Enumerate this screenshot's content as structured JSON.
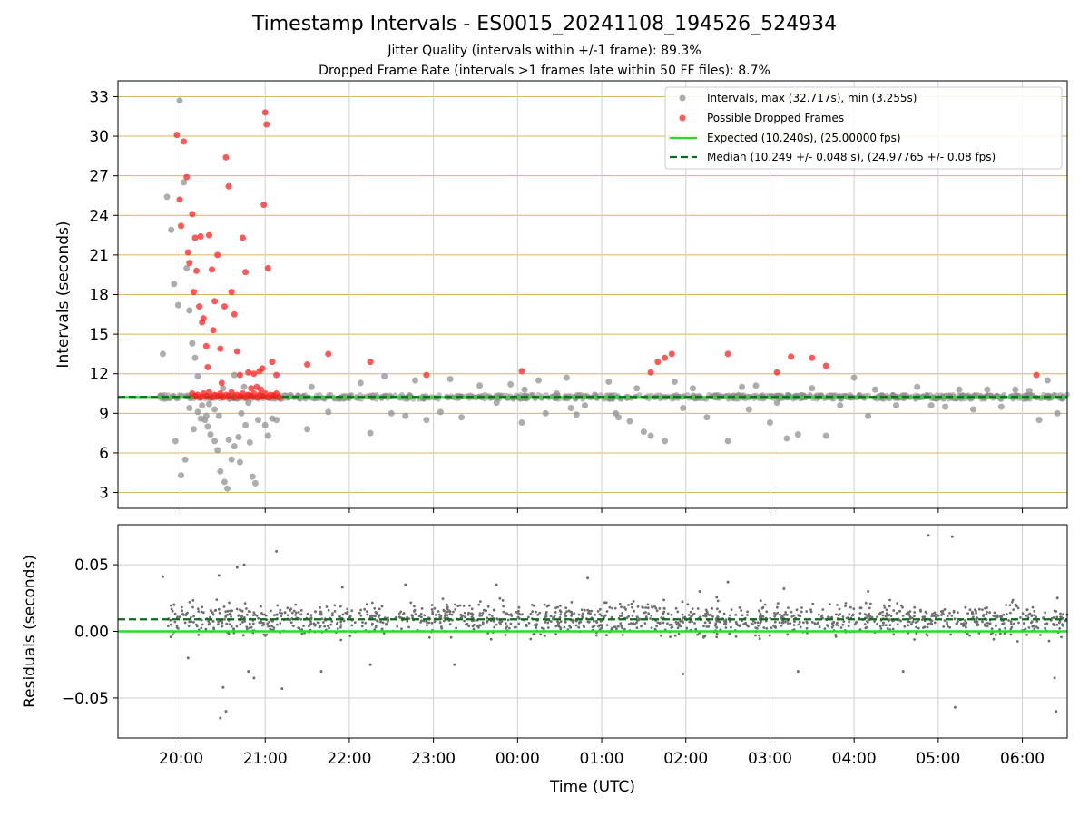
{
  "chart_data": [
    {
      "type": "scatter",
      "title": "Timestamp Intervals - ES0015_20241108_194526_524934",
      "subtitle": [
        "Jitter Quality (intervals within +/-1 frame): 89.3%",
        "Dropped Frame Rate (intervals >1 frames late within 50 FF files): 8.7%"
      ],
      "ylabel": "Intervals (seconds)",
      "xlim": [
        "19:15",
        "06:32"
      ],
      "ylim": [
        1.8,
        34.2
      ],
      "yticks": [
        3,
        6,
        9,
        12,
        15,
        18,
        21,
        24,
        27,
        30,
        33
      ],
      "grid": true,
      "legend_placement": "top-right",
      "legend": [
        "Intervals, max (32.717s), min (3.255s)",
        "Possible Dropped Frames",
        "Expected (10.240s), (25.00000 fps)",
        "Median (10.249 +/- 0.048 s), (24.97765 +/- 0.08 fps)"
      ],
      "expected_interval": 10.24,
      "median_interval": 10.249,
      "series": [
        {
          "name": "Intervals, max (32.717s), min (3.255s)",
          "color": "#8a8a8a",
          "x": [
            "19:47",
            "19:50",
            "19:53",
            "19:55",
            "19:58",
            "19:59",
            "20:02",
            "20:04",
            "20:06",
            "20:08",
            "20:10",
            "20:12",
            "20:15",
            "20:17",
            "20:19",
            "20:21",
            "20:24",
            "20:26",
            "20:28",
            "20:31",
            "20:33",
            "20:36",
            "20:38",
            "20:41",
            "20:43",
            "20:46",
            "20:48",
            "20:51",
            "20:53",
            "20:45",
            "20:38",
            "20:30",
            "20:24",
            "20:18",
            "20:12",
            "20:06",
            "19:56",
            "20:00",
            "20:03",
            "20:09",
            "20:14",
            "20:20",
            "20:27",
            "20:34",
            "20:42",
            "20:49",
            "20:55",
            "21:00",
            "21:02",
            "21:05",
            "21:08",
            "21:11",
            "21:30",
            "21:33",
            "21:45",
            "22:08",
            "22:15",
            "22:25",
            "22:30",
            "22:40",
            "22:47",
            "22:55",
            "23:05",
            "23:12",
            "23:20",
            "23:33",
            "23:45",
            "23:55",
            "00:03",
            "00:05",
            "00:15",
            "00:20",
            "00:28",
            "00:35",
            "00:38",
            "00:42",
            "00:48",
            "00:55",
            "01:05",
            "01:10",
            "01:12",
            "01:20",
            "01:25",
            "01:30",
            "01:35",
            "01:45",
            "01:52",
            "01:58",
            "02:05",
            "02:15",
            "02:30",
            "02:40",
            "02:45",
            "02:50",
            "03:00",
            "03:05",
            "03:12",
            "03:20",
            "03:30",
            "03:40",
            "03:50",
            "04:00",
            "04:10",
            "04:15",
            "04:30",
            "04:45",
            "04:55",
            "05:05",
            "05:15",
            "05:25",
            "05:35",
            "05:45",
            "05:55",
            "06:05",
            "06:12",
            "06:18",
            "06:25"
          ],
          "y": [
            13.5,
            25.4,
            22.9,
            18.8,
            17.2,
            32.7,
            26.5,
            20.0,
            16.8,
            14.3,
            13.2,
            11.8,
            9.6,
            8.5,
            8.0,
            7.4,
            6.9,
            6.2,
            4.6,
            3.8,
            3.3,
            5.5,
            6.5,
            7.2,
            9.0,
            8.1,
            9.8,
            4.2,
            3.7,
            11.0,
            11.9,
            10.9,
            9.3,
            8.8,
            9.1,
            9.4,
            6.9,
            4.3,
            5.5,
            7.8,
            8.6,
            9.7,
            8.8,
            7.0,
            5.3,
            6.8,
            8.5,
            8.1,
            7.3,
            8.6,
            8.5,
            10.1,
            7.8,
            11.0,
            9.1,
            11.3,
            7.5,
            11.8,
            9.0,
            8.8,
            11.5,
            8.5,
            9.1,
            11.6,
            8.7,
            11.1,
            9.8,
            11.2,
            8.3,
            10.8,
            11.5,
            9.0,
            10.5,
            11.7,
            9.4,
            8.9,
            9.6,
            10.4,
            11.4,
            9.0,
            8.7,
            8.4,
            10.9,
            7.6,
            7.3,
            6.9,
            11.4,
            9.4,
            10.9,
            8.7,
            6.9,
            11.0,
            9.3,
            11.1,
            8.3,
            9.8,
            7.1,
            7.4,
            10.9,
            7.3,
            9.6,
            11.7,
            8.8,
            10.8,
            9.6,
            11.0,
            9.6,
            9.5,
            10.8,
            9.3,
            10.8,
            9.5,
            10.8,
            10.7,
            8.5,
            11.5,
            9.0
          ]
        },
        {
          "name": "Possible Dropped Frames",
          "color": "#ff2020",
          "x": [
            "19:57",
            "19:59",
            "20:00",
            "20:02",
            "20:04",
            "20:05",
            "20:06",
            "20:08",
            "20:09",
            "20:10",
            "20:11",
            "20:13",
            "20:14",
            "20:15",
            "20:16",
            "20:18",
            "20:19",
            "20:20",
            "20:22",
            "20:23",
            "20:24",
            "20:26",
            "20:28",
            "20:29",
            "20:31",
            "20:32",
            "20:34",
            "20:36",
            "20:38",
            "20:40",
            "20:42",
            "20:44",
            "20:46",
            "20:48",
            "20:50",
            "20:52",
            "20:54",
            "20:56",
            "20:57",
            "20:58",
            "20:59",
            "21:00",
            "21:01",
            "21:02",
            "21:05",
            "21:08",
            "21:30",
            "21:45",
            "22:15",
            "22:55",
            "00:03",
            "01:35",
            "01:40",
            "01:45",
            "01:50",
            "02:30",
            "03:05",
            "03:15",
            "03:30",
            "03:40",
            "06:10"
          ],
          "y": [
            30.1,
            25.2,
            23.2,
            29.6,
            26.9,
            21.2,
            20.4,
            24.1,
            18.2,
            22.3,
            19.8,
            17.1,
            22.4,
            15.9,
            16.2,
            14.1,
            12.5,
            22.5,
            19.9,
            15.3,
            17.5,
            21.0,
            13.9,
            11.3,
            17.1,
            28.4,
            26.2,
            18.2,
            16.5,
            13.7,
            11.9,
            22.3,
            19.7,
            12.1,
            10.9,
            12.0,
            11.0,
            12.2,
            10.8,
            12.4,
            24.8,
            31.8,
            30.9,
            20.0,
            12.9,
            11.9,
            12.7,
            13.5,
            12.9,
            11.9,
            12.2,
            12.1,
            12.9,
            13.2,
            13.5,
            13.5,
            12.1,
            13.3,
            13.2,
            12.6,
            11.9
          ]
        },
        {
          "name": "Possible Dropped Frames (cluster)",
          "color": "#ff2020",
          "x": [
            "20:08",
            "20:10",
            "20:12",
            "20:14",
            "20:16",
            "20:18",
            "20:20",
            "20:22",
            "20:24",
            "20:26",
            "20:28",
            "20:30",
            "20:32",
            "20:34",
            "20:36",
            "20:38",
            "20:40",
            "20:42",
            "20:44",
            "20:46",
            "20:48",
            "20:50",
            "20:52",
            "20:54",
            "20:56",
            "20:58",
            "21:00",
            "21:02",
            "21:04",
            "21:06",
            "21:08",
            "21:10"
          ],
          "y": [
            10.5,
            10.3,
            10.4,
            10.2,
            10.5,
            10.3,
            10.6,
            10.2,
            10.4,
            10.3,
            10.5,
            10.2,
            10.4,
            10.3,
            10.6,
            10.2,
            10.4,
            10.3,
            10.5,
            10.2,
            10.4,
            10.3,
            10.5,
            10.2,
            10.4,
            10.3,
            10.5,
            10.2,
            10.4,
            10.3,
            10.5,
            10.2
          ]
        }
      ]
    },
    {
      "type": "scatter",
      "title": "",
      "xlabel": "Time (UTC)",
      "ylabel": "Residuals (seconds)",
      "xlim": [
        "19:15",
        "06:32"
      ],
      "ylim": [
        -0.08,
        0.08
      ],
      "yticks": [
        -0.05,
        0.0,
        0.05
      ],
      "ytick_labels": [
        "−0.05",
        "0.00",
        "0.05"
      ],
      "xticks": [
        "20:00",
        "21:00",
        "22:00",
        "23:00",
        "00:00",
        "01:00",
        "02:00",
        "03:00",
        "04:00",
        "05:00",
        "06:00"
      ],
      "grid": true,
      "expected_residual": 0.0,
      "median_residual": 0.009,
      "series": [
        {
          "name": "",
          "color": "#6e6e6e",
          "x": [
            "19:47",
            "19:55",
            "20:05",
            "20:27",
            "20:30",
            "20:40",
            "20:45",
            "20:48",
            "20:52",
            "20:28",
            "20:32",
            "21:08",
            "21:12",
            "21:40",
            "21:55",
            "22:15",
            "22:40",
            "23:15",
            "23:45",
            "00:50",
            "01:58",
            "02:10",
            "02:30",
            "03:10",
            "03:20",
            "04:10",
            "04:35",
            "04:53",
            "05:10",
            "05:12",
            "06:23",
            "06:24",
            "06:25"
          ],
          "y": [
            0.041,
            0.02,
            -0.02,
            0.042,
            -0.042,
            0.048,
            0.05,
            -0.03,
            -0.035,
            -0.065,
            -0.06,
            0.06,
            -0.043,
            -0.03,
            0.033,
            -0.025,
            0.035,
            -0.025,
            0.035,
            0.04,
            -0.032,
            0.03,
            0.037,
            0.032,
            -0.03,
            0.03,
            -0.03,
            0.072,
            0.071,
            -0.057,
            -0.035,
            -0.06,
            0.025
          ]
        }
      ]
    }
  ]
}
